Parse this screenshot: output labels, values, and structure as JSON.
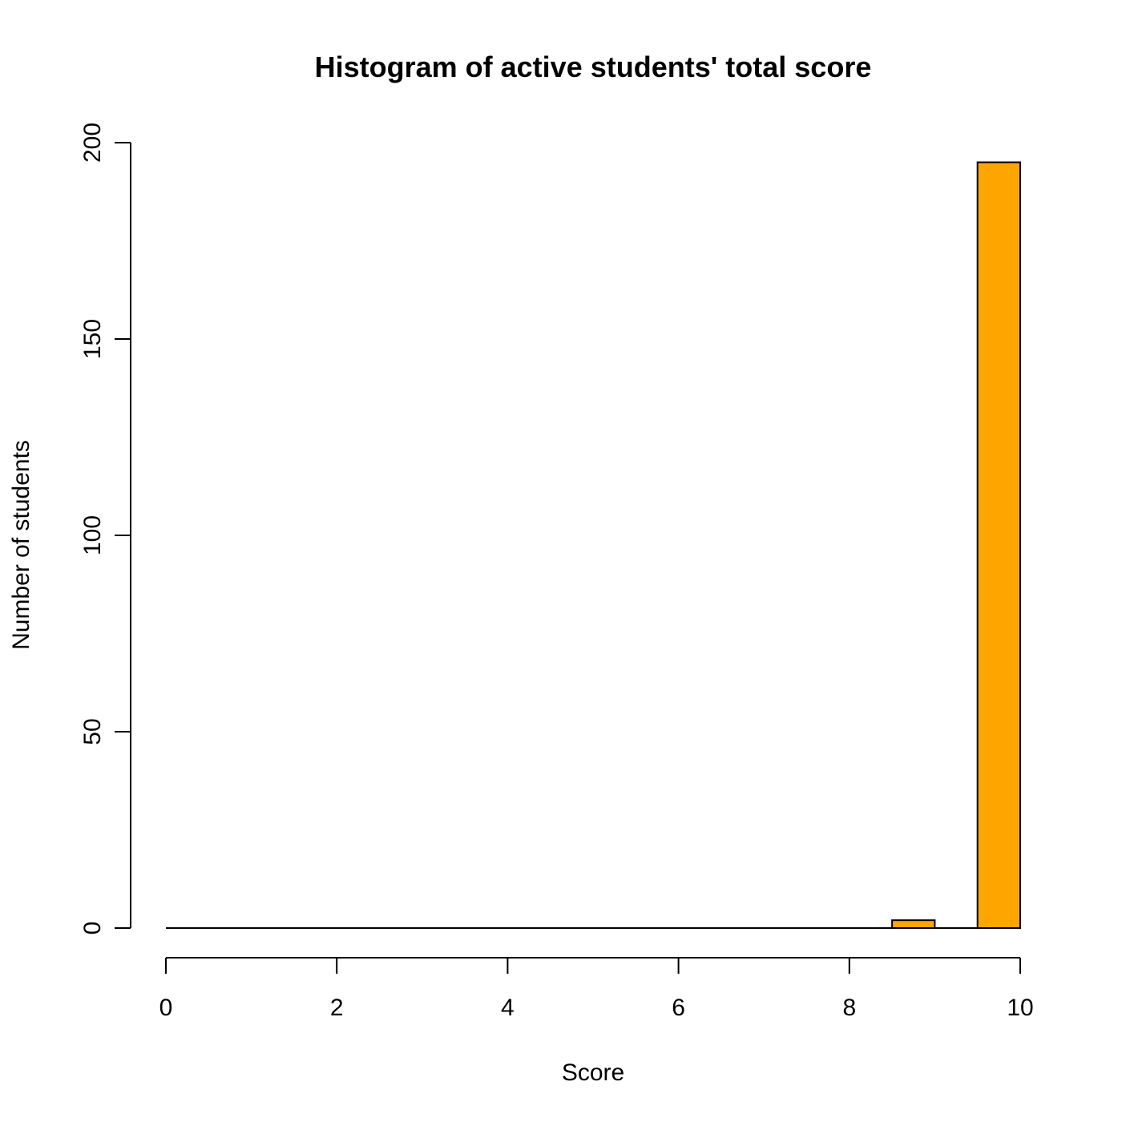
{
  "chart_data": {
    "type": "bar",
    "title": "Histogram of active students' total score",
    "xlabel": "Score",
    "ylabel": "Number of students",
    "xlim": [
      0,
      10
    ],
    "ylim": [
      0,
      200
    ],
    "bar_color": "#FFA500",
    "x_ticks": [
      0,
      2,
      4,
      6,
      8,
      10
    ],
    "y_ticks": [
      0,
      50,
      100,
      150,
      200
    ],
    "bins": [
      {
        "start": 0.0,
        "end": 0.5,
        "count": 0
      },
      {
        "start": 0.5,
        "end": 1.0,
        "count": 0
      },
      {
        "start": 1.0,
        "end": 1.5,
        "count": 0
      },
      {
        "start": 1.5,
        "end": 2.0,
        "count": 0
      },
      {
        "start": 2.0,
        "end": 2.5,
        "count": 0
      },
      {
        "start": 2.5,
        "end": 3.0,
        "count": 0
      },
      {
        "start": 3.0,
        "end": 3.5,
        "count": 0
      },
      {
        "start": 3.5,
        "end": 4.0,
        "count": 0
      },
      {
        "start": 4.0,
        "end": 4.5,
        "count": 0
      },
      {
        "start": 4.5,
        "end": 5.0,
        "count": 0
      },
      {
        "start": 5.0,
        "end": 5.5,
        "count": 0
      },
      {
        "start": 5.5,
        "end": 6.0,
        "count": 0
      },
      {
        "start": 6.0,
        "end": 6.5,
        "count": 0
      },
      {
        "start": 6.5,
        "end": 7.0,
        "count": 0
      },
      {
        "start": 7.0,
        "end": 7.5,
        "count": 0
      },
      {
        "start": 7.5,
        "end": 8.0,
        "count": 0
      },
      {
        "start": 8.0,
        "end": 8.5,
        "count": 0
      },
      {
        "start": 8.5,
        "end": 9.0,
        "count": 2
      },
      {
        "start": 9.0,
        "end": 9.5,
        "count": 0
      },
      {
        "start": 9.5,
        "end": 10.0,
        "count": 195
      }
    ]
  }
}
